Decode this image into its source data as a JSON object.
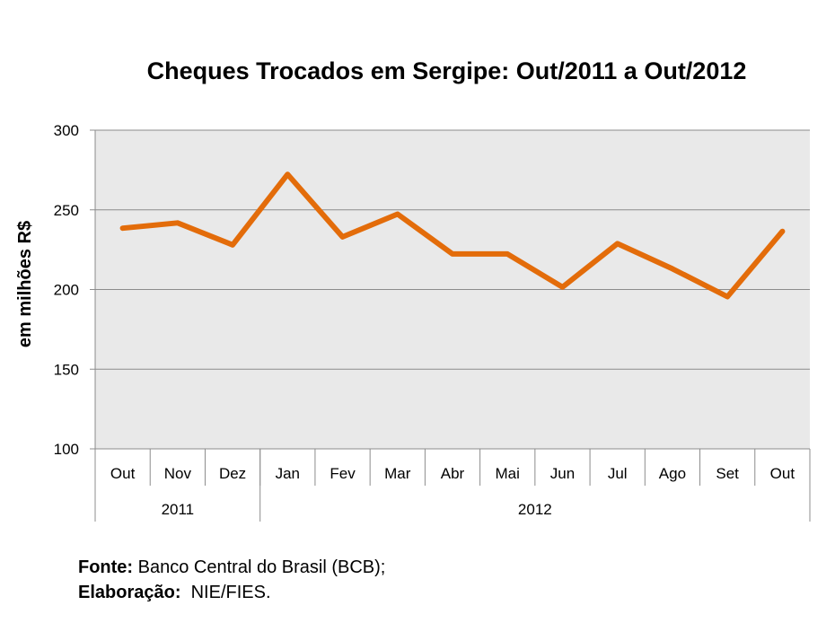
{
  "chart_data": {
    "type": "line",
    "title": "Cheques Trocados em Sergipe: Out/2011 a Out/2012",
    "ylabel": "em milhões R$",
    "xlabel": "",
    "ylim": [
      100,
      300
    ],
    "yticks": [
      "100",
      "150",
      "200",
      "250",
      "300"
    ],
    "categories": [
      "Out",
      "Nov",
      "Dez",
      "Jan",
      "Fev",
      "Mar",
      "Abr",
      "Mai",
      "Jun",
      "Jul",
      "Ago",
      "Set",
      "Out"
    ],
    "year_groups": [
      {
        "label": "2011",
        "count": 3
      },
      {
        "label": "2012",
        "count": 10
      }
    ],
    "series": [
      {
        "name": "Cheques Trocados",
        "color": "#E36C0A",
        "values": [
          238.5,
          241.8,
          228,
          272.3,
          233,
          247.3,
          222.3,
          222.3,
          201.5,
          228.8,
          213,
          195.5,
          236.5
        ]
      }
    ],
    "grid": true,
    "plot_background": "#E9E9E9"
  },
  "footer": {
    "source_label": "Fonte:",
    "source_text": " Banco Central do Brasil (BCB);",
    "made_label": "Elaboração:",
    "made_text": "  NIE/FIES."
  }
}
